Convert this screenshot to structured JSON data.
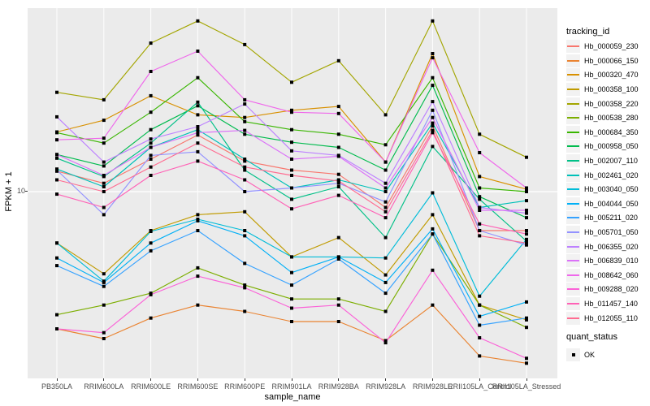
{
  "figure": {
    "bg": "#FFFFFF",
    "panel_bg": "#EBEBEB",
    "grid_color": "#FFFFFF",
    "tick_color": "#333333",
    "tick_label_color": "#4D4D4D",
    "point_color": "#000000"
  },
  "axes": {
    "y_label": "FPKM + 1",
    "x_label": "sample_name",
    "y_tick_label": "10"
  },
  "legend": {
    "tracking_title": "tracking_id",
    "quant_title": "quant_status",
    "quant_item": "OK"
  },
  "chart_data": {
    "type": "line",
    "title": "",
    "xlabel": "sample_name",
    "ylabel": "FPKM + 1",
    "yscale": "log10",
    "yticks": [
      10
    ],
    "ylim": [
      2.2,
      44
    ],
    "grid": true,
    "legend_position": "right",
    "point_marker": "black-square",
    "quant_status": "OK",
    "categories": [
      "PB350LA",
      "RRIM600LA",
      "RRIM600LE",
      "RRIM600SE",
      "RRIM600PE",
      "RRIM901LA",
      "RRIM928BA",
      "RRIM928LA",
      "RRIM928LE",
      "RRII105LA_Control",
      "RRII105LA_Stressed"
    ],
    "series": [
      {
        "name": "Hb_000059_230",
        "color": "#F8766D",
        "values": [
          11.8,
          10.7,
          13.0,
          15.8,
          12.8,
          11.9,
          11.5,
          8.8,
          17.0,
          7.3,
          7.3
        ]
      },
      {
        "name": "Hb_000066_150",
        "color": "#EA8331",
        "values": [
          3.3,
          3.05,
          3.6,
          4.0,
          3.8,
          3.5,
          3.5,
          3.0,
          4.0,
          2.65,
          2.5
        ]
      },
      {
        "name": "Hb_000320_470",
        "color": "#D89000",
        "values": [
          16.2,
          17.8,
          21.7,
          18.6,
          18.2,
          19.3,
          19.9,
          12.7,
          30.5,
          11.3,
          10.2
        ]
      },
      {
        "name": "Hb_000358_100",
        "color": "#C09B00",
        "values": [
          6.6,
          5.15,
          7.3,
          8.3,
          8.5,
          5.9,
          6.9,
          5.1,
          8.3,
          4.0,
          3.55
        ]
      },
      {
        "name": "Hb_000358_220",
        "color": "#A3A500",
        "values": [
          22.3,
          21.0,
          33.2,
          39.7,
          32.8,
          24.2,
          28.8,
          18.6,
          39.7,
          15.9,
          13.2
        ]
      },
      {
        "name": "Hb_000538_280",
        "color": "#7CAE00",
        "values": [
          3.7,
          4.0,
          4.4,
          5.4,
          4.7,
          4.2,
          4.2,
          3.8,
          7.1,
          4.0,
          3.34
        ]
      },
      {
        "name": "Hb_000684_350",
        "color": "#39B600",
        "values": [
          16.1,
          14.8,
          19.0,
          25.1,
          17.6,
          16.5,
          15.9,
          14.6,
          25.1,
          10.3,
          10.0
        ]
      },
      {
        "name": "Hb_000958_050",
        "color": "#00BB4E",
        "values": [
          13.5,
          12.3,
          16.5,
          20.0,
          15.9,
          14.9,
          14.3,
          11.9,
          23.6,
          9.6,
          8.1
        ]
      },
      {
        "name": "Hb_002007_110",
        "color": "#00C087",
        "values": [
          13.1,
          11.3,
          14.8,
          20.6,
          11.9,
          9.4,
          10.4,
          6.9,
          14.4,
          9.4,
          6.7
        ]
      },
      {
        "name": "Hb_002461_020",
        "color": "#00C0B8",
        "values": [
          12.0,
          10.4,
          14.3,
          16.5,
          13.0,
          10.3,
          11.0,
          10.0,
          17.4,
          8.8,
          9.3
        ]
      },
      {
        "name": "Hb_003040_050",
        "color": "#00BCD8",
        "values": [
          6.6,
          4.85,
          7.25,
          8.0,
          7.3,
          5.9,
          5.9,
          5.85,
          9.9,
          4.3,
          6.8
        ]
      },
      {
        "name": "Hb_004044_050",
        "color": "#00B0F6",
        "values": [
          5.85,
          4.8,
          6.6,
          7.9,
          7.0,
          5.2,
          5.9,
          4.8,
          7.4,
          3.65,
          4.1
        ]
      },
      {
        "name": "Hb_005211_020",
        "color": "#35A2FF",
        "values": [
          5.5,
          4.65,
          6.2,
          7.3,
          5.6,
          4.7,
          5.8,
          4.4,
          7.1,
          3.4,
          3.6
        ]
      },
      {
        "name": "Hb_005701_050",
        "color": "#9392FF",
        "values": [
          11.9,
          8.3,
          13.4,
          13.8,
          10.0,
          10.3,
          10.7,
          9.2,
          19.3,
          7.3,
          6.5
        ]
      },
      {
        "name": "Hb_006355_020",
        "color": "#BD81FF",
        "values": [
          18.3,
          12.7,
          15.3,
          16.9,
          20.3,
          13.9,
          13.4,
          10.7,
          20.7,
          8.8,
          8.4
        ]
      },
      {
        "name": "Hb_006839_010",
        "color": "#DB72F8",
        "values": [
          13.5,
          11.4,
          14.3,
          16.1,
          16.4,
          13.0,
          13.3,
          10.3,
          18.2,
          8.6,
          8.6
        ]
      },
      {
        "name": "Hb_008642_060",
        "color": "#EF67EB",
        "values": [
          15.2,
          15.4,
          26.4,
          31.1,
          21.0,
          19.0,
          18.8,
          12.7,
          29.5,
          13.7,
          10.3
        ]
      },
      {
        "name": "Hb_009288_020",
        "color": "#FB61D7",
        "values": [
          3.3,
          3.2,
          4.35,
          5.05,
          4.6,
          3.9,
          4.0,
          2.95,
          5.3,
          3.07,
          2.6
        ]
      },
      {
        "name": "Hb_011457_140",
        "color": "#FF62B6",
        "values": [
          9.8,
          8.8,
          11.4,
          12.8,
          11.0,
          8.7,
          9.7,
          8.1,
          16.1,
          7.7,
          7.1
        ]
      },
      {
        "name": "Hb_012055_110",
        "color": "#FF6C91",
        "values": [
          11.0,
          10.0,
          12.2,
          14.8,
          12.2,
          11.4,
          10.9,
          8.5,
          16.4,
          7.0,
          6.6
        ]
      }
    ]
  }
}
